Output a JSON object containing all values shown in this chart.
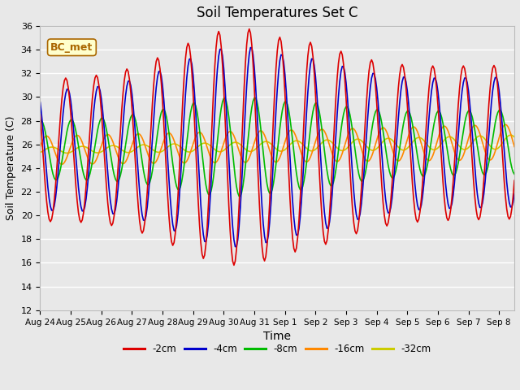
{
  "title": "Soil Temperatures Set C",
  "xlabel": "Time",
  "ylabel": "Soil Temperature (C)",
  "ylim": [
    12,
    36
  ],
  "yticks": [
    12,
    14,
    16,
    18,
    20,
    22,
    24,
    26,
    28,
    30,
    32,
    34,
    36
  ],
  "series_colors": {
    "-2cm": "#dd0000",
    "-4cm": "#0000cc",
    "-8cm": "#00bb00",
    "-16cm": "#ff8800",
    "-32cm": "#cccc00"
  },
  "linewidth": 1.2,
  "annotation_text": "BC_met",
  "annotation_fg": "#aa6600",
  "annotation_bg": "#ffffcc",
  "annotation_edge": "#aa6600",
  "background_color": "#e8e8e8",
  "grid_color": "white",
  "xtick_labels": [
    "Aug 24",
    "Aug 25",
    "Aug 26",
    "Aug 27",
    "Aug 28",
    "Aug 29",
    "Aug 30",
    "Aug 31",
    "Sep 1",
    "Sep 2",
    "Sep 3",
    "Sep 4",
    "Sep 5",
    "Sep 6",
    "Sep 7",
    "Sep 8"
  ]
}
